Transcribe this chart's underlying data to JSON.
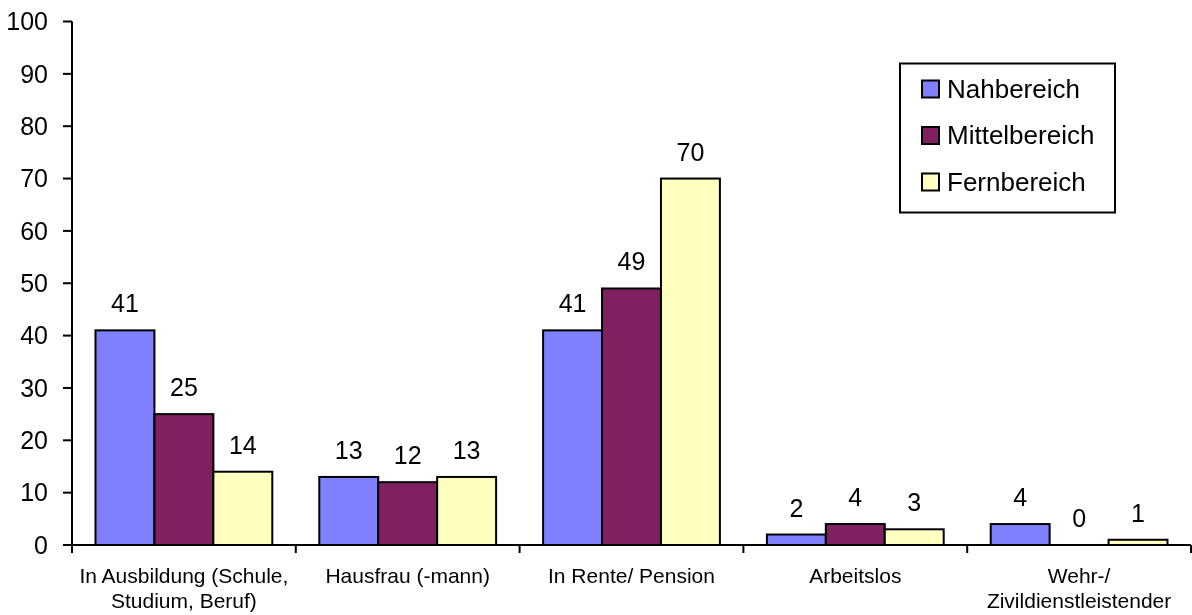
{
  "chart_data": {
    "type": "bar",
    "categories": [
      "In Ausbildung (Schule, Studium, Beruf)",
      "Hausfrau (-mann)",
      "In Rente/ Pension",
      "Arbeitslos",
      "Wehr-/ Zivildienstleistender"
    ],
    "series": [
      {
        "name": "Nahbereich",
        "color": "#8080ff",
        "values": [
          41,
          13,
          41,
          2,
          4
        ]
      },
      {
        "name": "Mittelbereich",
        "color": "#802060",
        "values": [
          25,
          12,
          49,
          4,
          0
        ]
      },
      {
        "name": "Fernbereich",
        "color": "#ffffc0",
        "values": [
          14,
          13,
          70,
          3,
          1
        ]
      }
    ],
    "ylim": [
      0,
      100
    ],
    "yticks": [
      0,
      10,
      20,
      30,
      40,
      50,
      60,
      70,
      80,
      90,
      100
    ],
    "data_labels": true,
    "legend": "top right"
  }
}
